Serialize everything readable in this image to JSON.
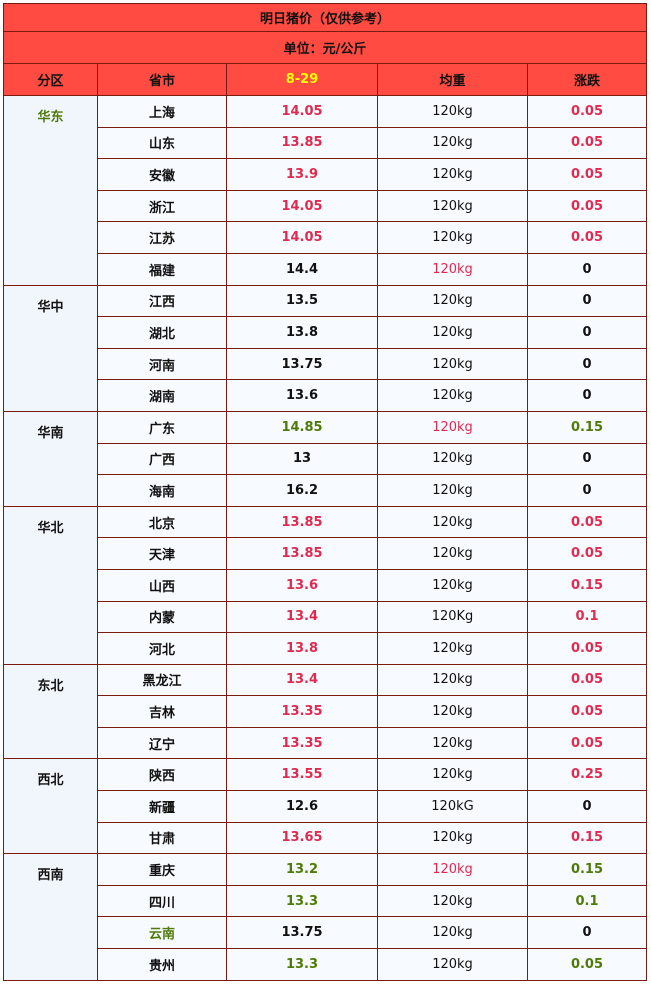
{
  "title": "明日猪价（仅供参考）",
  "unit": "单位：元/公斤",
  "headers": {
    "region": "分区",
    "province": "省市",
    "date": "8-29",
    "weight": "均重",
    "change": "涨跌"
  },
  "colors": {
    "header_bg": "#ff4b41",
    "border": "#7a1a10",
    "red": "#e02a4e",
    "green": "#4e7a06",
    "date": "#ffff00"
  },
  "groups": [
    {
      "region": "华东",
      "region_color": "green",
      "rows": [
        {
          "province": "上海",
          "price": "14.05",
          "price_color": "red",
          "weight": "120kg",
          "weight_color": "black",
          "change": "0.05",
          "change_color": "red"
        },
        {
          "province": "山东",
          "price": "13.85",
          "price_color": "red",
          "weight": "120kg",
          "weight_color": "black",
          "change": "0.05",
          "change_color": "red"
        },
        {
          "province": "安徽",
          "price": "13.9",
          "price_color": "red",
          "weight": "120kg",
          "weight_color": "black",
          "change": "0.05",
          "change_color": "red"
        },
        {
          "province": "浙江",
          "price": "14.05",
          "price_color": "red",
          "weight": "120kg",
          "weight_color": "black",
          "change": "0.05",
          "change_color": "red"
        },
        {
          "province": "江苏",
          "price": "14.05",
          "price_color": "red",
          "weight": "120kg",
          "weight_color": "black",
          "change": "0.05",
          "change_color": "red"
        },
        {
          "province": "福建",
          "price": "14.4",
          "price_color": "black",
          "weight": "120kg",
          "weight_color": "red",
          "change": "0",
          "change_color": "black"
        }
      ]
    },
    {
      "region": "华中",
      "region_color": "black",
      "rows": [
        {
          "province": "江西",
          "price": "13.5",
          "price_color": "black",
          "weight": "120kg",
          "weight_color": "black",
          "change": "0",
          "change_color": "black"
        },
        {
          "province": "湖北",
          "price": "13.8",
          "price_color": "black",
          "weight": "120kg",
          "weight_color": "black",
          "change": "0",
          "change_color": "black"
        },
        {
          "province": "河南",
          "price": "13.75",
          "price_color": "black",
          "weight": "120kg",
          "weight_color": "black",
          "change": "0",
          "change_color": "black"
        },
        {
          "province": "湖南",
          "price": "13.6",
          "price_color": "black",
          "weight": "120kg",
          "weight_color": "black",
          "change": "0",
          "change_color": "black"
        }
      ]
    },
    {
      "region": "华南",
      "region_color": "black",
      "rows": [
        {
          "province": "广东",
          "price": "14.85",
          "price_color": "green",
          "weight": "120kg",
          "weight_color": "red",
          "change": "0.15",
          "change_color": "green"
        },
        {
          "province": "广西",
          "price": "13",
          "price_color": "black",
          "weight": "120kg",
          "weight_color": "black",
          "change": "0",
          "change_color": "black"
        },
        {
          "province": "海南",
          "price": "16.2",
          "price_color": "black",
          "weight": "120kg",
          "weight_color": "black",
          "change": "0",
          "change_color": "black"
        }
      ]
    },
    {
      "region": "华北",
      "region_color": "black",
      "rows": [
        {
          "province": "北京",
          "price": "13.85",
          "price_color": "red",
          "weight": "120kg",
          "weight_color": "black",
          "change": "0.05",
          "change_color": "red"
        },
        {
          "province": "天津",
          "price": "13.85",
          "price_color": "red",
          "weight": "120kg",
          "weight_color": "black",
          "change": "0.05",
          "change_color": "red"
        },
        {
          "province": "山西",
          "price": "13.6",
          "price_color": "red",
          "weight": "120kg",
          "weight_color": "black",
          "change": "0.15",
          "change_color": "red"
        },
        {
          "province": "内蒙",
          "price": "13.4",
          "price_color": "red",
          "weight": "120Kg",
          "weight_color": "black",
          "change": "0.1",
          "change_color": "red"
        },
        {
          "province": "河北",
          "price": "13.8",
          "price_color": "red",
          "weight": "120kg",
          "weight_color": "black",
          "change": "0.05",
          "change_color": "red"
        }
      ]
    },
    {
      "region": "东北",
      "region_color": "black",
      "rows": [
        {
          "province": "黑龙江",
          "price": "13.4",
          "price_color": "red",
          "weight": "120kg",
          "weight_color": "black",
          "change": "0.05",
          "change_color": "red"
        },
        {
          "province": "吉林",
          "price": "13.35",
          "price_color": "red",
          "weight": "120kg",
          "weight_color": "black",
          "change": "0.05",
          "change_color": "red"
        },
        {
          "province": "辽宁",
          "price": "13.35",
          "price_color": "red",
          "weight": "120kg",
          "weight_color": "black",
          "change": "0.05",
          "change_color": "red"
        }
      ]
    },
    {
      "region": "西北",
      "region_color": "black",
      "rows": [
        {
          "province": "陕西",
          "price": "13.55",
          "price_color": "red",
          "weight": "120kg",
          "weight_color": "black",
          "change": "0.25",
          "change_color": "red"
        },
        {
          "province": "新疆",
          "price": "12.6",
          "price_color": "black",
          "weight": "120kG",
          "weight_color": "black",
          "change": "0",
          "change_color": "black"
        },
        {
          "province": "甘肃",
          "price": "13.65",
          "price_color": "red",
          "weight": "120kg",
          "weight_color": "black",
          "change": "0.15",
          "change_color": "red"
        }
      ]
    },
    {
      "region": "西南",
      "region_color": "black",
      "rows": [
        {
          "province": "重庆",
          "price": "13.2",
          "price_color": "green",
          "weight": "120kg",
          "weight_color": "red",
          "change": "0.15",
          "change_color": "green"
        },
        {
          "province": "四川",
          "price": "13.3",
          "price_color": "green",
          "weight": "120kg",
          "weight_color": "black",
          "change": "0.1",
          "change_color": "green"
        },
        {
          "province": "云南",
          "province_color": "green",
          "price": "13.75",
          "price_color": "black",
          "weight": "120kg",
          "weight_color": "black",
          "change": "0",
          "change_color": "black"
        },
        {
          "province": "贵州",
          "price": "13.3",
          "price_color": "green",
          "weight": "120kg",
          "weight_color": "black",
          "change": "0.05",
          "change_color": "green"
        }
      ]
    }
  ]
}
